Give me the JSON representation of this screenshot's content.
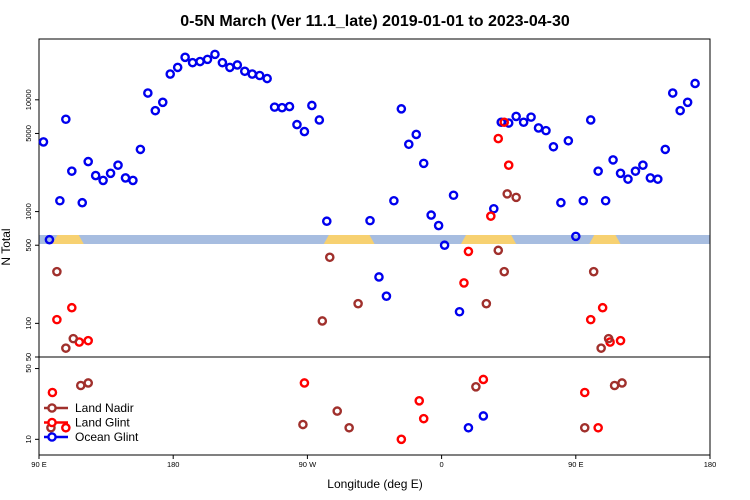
{
  "chart_data": {
    "type": "scatter",
    "title": "0-5N March (Ver 11.1_late)   2019-01-01 to 2023-04-30",
    "xlabel": "Longitude (deg E)",
    "ylabel": "N Total",
    "x_ticks": [
      {
        "label": "90 E",
        "value": 90
      },
      {
        "label": "180",
        "value": 180
      },
      {
        "label": "90 W",
        "value": 270
      },
      {
        "label": "0",
        "value": 360
      },
      {
        "label": "90 E",
        "value": 450
      },
      {
        "label": "180",
        "value": 540
      }
    ],
    "xlim": [
      90,
      540
    ],
    "log_scale": true,
    "upper_panel": {
      "ylim": [
        50,
        35000
      ],
      "y_ticks": [
        "50",
        "100",
        "500",
        "1000",
        "5000",
        "10000"
      ],
      "y_tick_values": [
        50,
        100,
        500,
        1000,
        5000,
        10000
      ]
    },
    "lower_panel": {
      "ylim": [
        7,
        65
      ],
      "y_ticks": [
        "10",
        "50"
      ],
      "y_tick_values": [
        10,
        50
      ]
    },
    "legend": {
      "position": "bottom-left",
      "entries": [
        "Land Nadir",
        "Land Glint",
        "Ocean Glint"
      ]
    },
    "colors": {
      "land_nadir": "#a0302c",
      "land_glint": "#ff0000",
      "ocean_glint": "#0000ee",
      "band_blue": "#a7bde0",
      "band_land": "#f7d171"
    },
    "land_band_ranges": [
      [
        99,
        120
      ],
      [
        281,
        315
      ],
      [
        373,
        410
      ],
      [
        459,
        480
      ]
    ],
    "series": [
      {
        "name": "Ocean Glint",
        "points": [
          [
            93,
            4200
          ],
          [
            97,
            560
          ],
          [
            104,
            1250
          ],
          [
            108,
            6700
          ],
          [
            112,
            2300
          ],
          [
            119,
            1200
          ],
          [
            123,
            2800
          ],
          [
            128,
            2100
          ],
          [
            133,
            1900
          ],
          [
            138,
            2200
          ],
          [
            143,
            2600
          ],
          [
            148,
            2000
          ],
          [
            153,
            1900
          ],
          [
            158,
            3600
          ],
          [
            163,
            11500
          ],
          [
            168,
            8000
          ],
          [
            173,
            9500
          ],
          [
            178,
            17000
          ],
          [
            183,
            19500
          ],
          [
            188,
            24000
          ],
          [
            193,
            21500
          ],
          [
            198,
            22000
          ],
          [
            203,
            23000
          ],
          [
            208,
            25500
          ],
          [
            213,
            21500
          ],
          [
            218,
            19500
          ],
          [
            223,
            20500
          ],
          [
            228,
            18000
          ],
          [
            233,
            17000
          ],
          [
            238,
            16500
          ],
          [
            243,
            15500
          ],
          [
            248,
            8600
          ],
          [
            253,
            8500
          ],
          [
            258,
            8700
          ],
          [
            263,
            6000
          ],
          [
            268,
            5200
          ],
          [
            273,
            8900
          ],
          [
            278,
            6600
          ],
          [
            283,
            820
          ],
          [
            312,
            830
          ],
          [
            318,
            260
          ],
          [
            323,
            175
          ],
          [
            328,
            1250
          ],
          [
            333,
            8300
          ],
          [
            338,
            4000
          ],
          [
            343,
            4900
          ],
          [
            348,
            2700
          ],
          [
            353,
            930
          ],
          [
            358,
            750
          ],
          [
            362,
            500
          ],
          [
            368,
            1400
          ],
          [
            372,
            127
          ],
          [
            378,
            13
          ],
          [
            388,
            17
          ],
          [
            395,
            1060
          ],
          [
            400,
            6300
          ],
          [
            405,
            6200
          ],
          [
            410,
            7100
          ],
          [
            415,
            6300
          ],
          [
            420,
            7000
          ],
          [
            425,
            5600
          ],
          [
            430,
            5300
          ],
          [
            435,
            3800
          ],
          [
            440,
            1200
          ],
          [
            445,
            4300
          ],
          [
            450,
            600
          ],
          [
            455,
            1250
          ],
          [
            460,
            6600
          ],
          [
            465,
            2300
          ],
          [
            470,
            1250
          ],
          [
            475,
            2900
          ],
          [
            480,
            2200
          ],
          [
            485,
            1950
          ],
          [
            490,
            2300
          ],
          [
            495,
            2600
          ],
          [
            500,
            2000
          ],
          [
            505,
            1950
          ],
          [
            510,
            3600
          ],
          [
            515,
            11500
          ],
          [
            520,
            8000
          ],
          [
            525,
            9500
          ],
          [
            530,
            14000
          ]
        ]
      },
      {
        "name": "Land Glint",
        "points": [
          [
            99,
            29
          ],
          [
            102,
            108
          ],
          [
            108,
            13
          ],
          [
            112,
            138
          ],
          [
            117,
            68
          ],
          [
            123,
            70
          ],
          [
            268,
            36
          ],
          [
            333,
            10
          ],
          [
            388,
            39
          ],
          [
            345,
            24
          ],
          [
            348,
            16
          ],
          [
            375,
            230
          ],
          [
            378,
            440
          ],
          [
            393,
            910
          ],
          [
            398,
            4500
          ],
          [
            402,
            6300
          ],
          [
            405,
            2600
          ],
          [
            456,
            29
          ],
          [
            460,
            108
          ],
          [
            465,
            13
          ],
          [
            468,
            138
          ],
          [
            473,
            68
          ],
          [
            480,
            70
          ]
        ]
      },
      {
        "name": "Land Nadir",
        "points": [
          [
            102,
            290
          ],
          [
            98,
            13
          ],
          [
            108,
            60
          ],
          [
            113,
            73
          ],
          [
            118,
            34
          ],
          [
            123,
            36
          ],
          [
            267,
            14
          ],
          [
            280,
            105
          ],
          [
            285,
            390
          ],
          [
            290,
            19
          ],
          [
            298,
            13
          ],
          [
            304,
            150
          ],
          [
            383,
            33
          ],
          [
            390,
            150
          ],
          [
            398,
            450
          ],
          [
            402,
            290
          ],
          [
            404,
            1440
          ],
          [
            410,
            1340
          ],
          [
            456,
            13
          ],
          [
            462,
            290
          ],
          [
            467,
            60
          ],
          [
            472,
            73
          ],
          [
            476,
            34
          ],
          [
            481,
            36
          ]
        ]
      }
    ]
  }
}
